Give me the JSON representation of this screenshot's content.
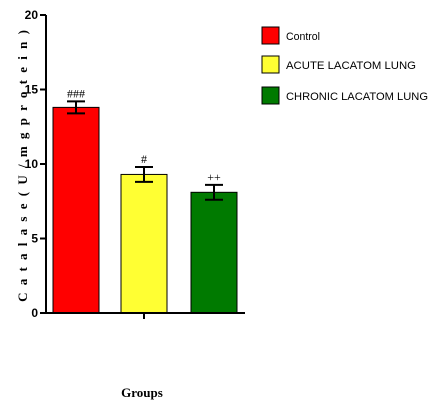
{
  "chart_data": {
    "type": "bar",
    "title": "",
    "xlabel": "Groups",
    "ylabel": "C a t a l a s e   ( U / m g   p r o t e i n )",
    "ylim": [
      0,
      20
    ],
    "yticks": [
      0,
      5,
      10,
      15,
      20
    ],
    "grid": false,
    "legend_position": "top-right",
    "categories": [
      "Control",
      "ACUTE LACATOM LUNG",
      "CHRONIC LACATOM LUNG"
    ],
    "values": [
      13.8,
      9.3,
      8.1
    ],
    "errors": [
      0.4,
      0.5,
      0.5
    ],
    "colors": [
      "#ff0000",
      "#ffff33",
      "#007a00"
    ],
    "annotations": [
      "###",
      "#",
      "++"
    ]
  },
  "legend": {
    "items": [
      {
        "label": "Control",
        "color": "#ff0000"
      },
      {
        "label": "ACUTE LACATOM LUNG",
        "color": "#ffff33"
      },
      {
        "label": "CHRONIC LACATOM LUNG",
        "color": "#007a00"
      }
    ]
  }
}
